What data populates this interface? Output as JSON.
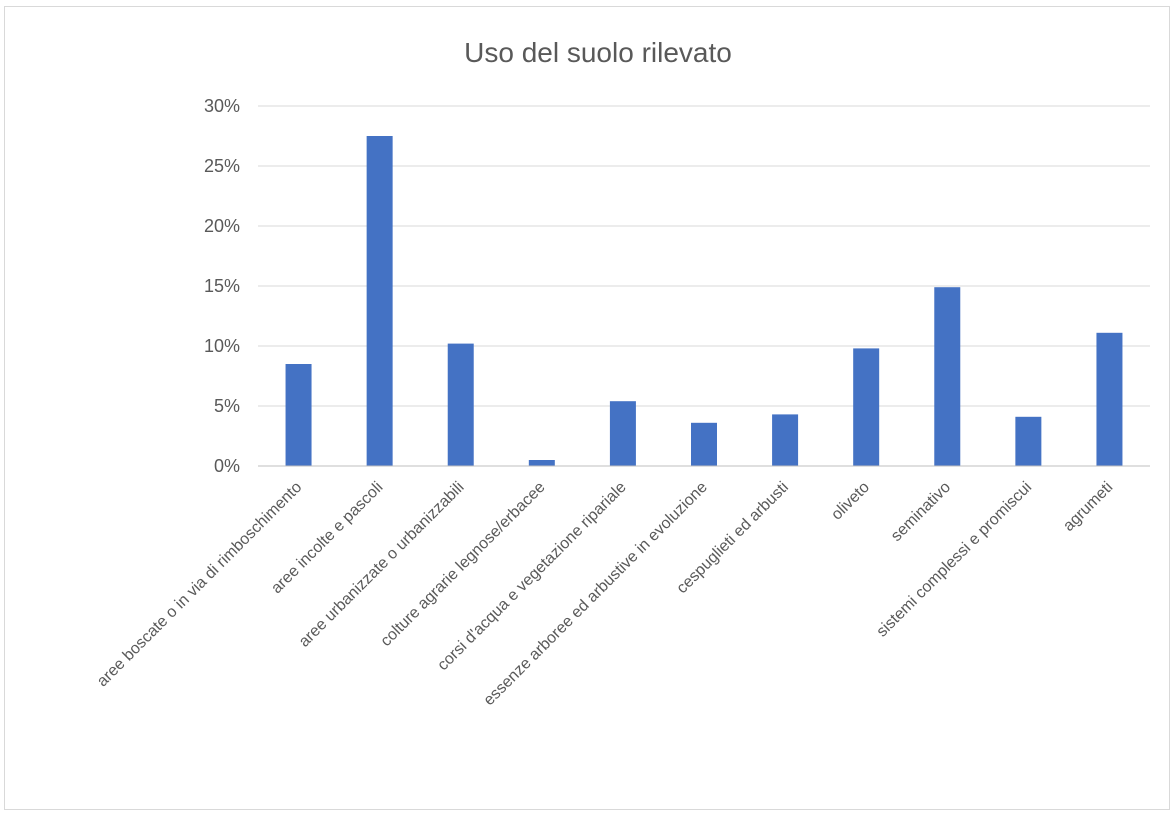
{
  "chart_data": {
    "type": "bar",
    "title": "Uso del suolo rilevato",
    "xlabel": "",
    "ylabel": "",
    "ylim": [
      0,
      0.3
    ],
    "yticks": [
      0,
      0.05,
      0.1,
      0.15,
      0.2,
      0.25,
      0.3
    ],
    "ytick_labels": [
      "0%",
      "5%",
      "10%",
      "15%",
      "20%",
      "25%",
      "30%"
    ],
    "grid": true,
    "legend": "none",
    "bar_color": "#4472C4",
    "categories": [
      "aree boscate o in via di rimboschimento",
      "aree incolte e pascoli",
      "aree urbanizzate o urbanizzabili",
      "colture agrarie legnose/erbacee",
      "corsi d'acqua e vegetazione ripariale",
      "essenze arboree ed arbustive in evoluzione",
      "cespuglieti ed arbusti",
      "oliveto",
      "seminativo",
      "sistemi complessi e promiscui",
      "agrumeti"
    ],
    "values": [
      0.085,
      0.275,
      0.102,
      0.005,
      0.054,
      0.036,
      0.043,
      0.098,
      0.149,
      0.041,
      0.111
    ]
  }
}
